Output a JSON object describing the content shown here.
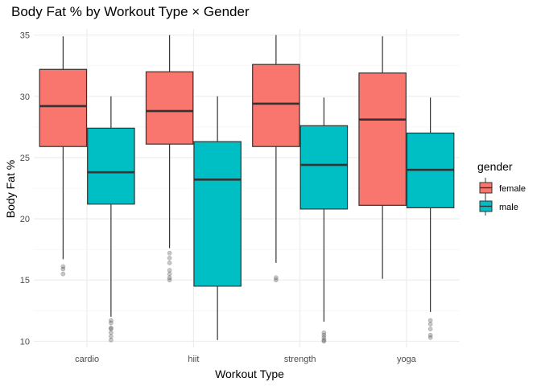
{
  "chart_data": {
    "type": "boxplot",
    "title": "Body Fat % by Workout Type × Gender",
    "xlabel": "Workout Type",
    "ylabel": "Body Fat %",
    "categories": [
      "cardio",
      "hiit",
      "strength",
      "yoga"
    ],
    "ylim": [
      9.5,
      35.5
    ],
    "yticks": [
      10,
      15,
      20,
      25,
      30,
      35
    ],
    "grid": true,
    "legend": {
      "title": "gender",
      "position": "right",
      "entries": [
        "female",
        "male"
      ]
    },
    "series": [
      {
        "name": "female",
        "color": "#F8766D",
        "boxes": [
          {
            "lower_whisker": 16.7,
            "q1": 25.9,
            "median": 29.2,
            "q3": 32.2,
            "upper_whisker": 34.9,
            "outliers": [
              16.1,
              15.9,
              15.5
            ]
          },
          {
            "lower_whisker": 17.6,
            "q1": 26.1,
            "median": 28.8,
            "q3": 32.0,
            "upper_whisker": 35.0,
            "outliers": [
              17.2,
              16.8,
              16.4,
              15.8,
              15.5,
              15.2,
              15.0
            ]
          },
          {
            "lower_whisker": 16.4,
            "q1": 25.9,
            "median": 29.4,
            "q3": 32.6,
            "upper_whisker": 35.0,
            "outliers": [
              15.2,
              15.0
            ]
          },
          {
            "lower_whisker": 15.1,
            "q1": 21.1,
            "median": 28.1,
            "q3": 31.9,
            "upper_whisker": 34.9,
            "outliers": []
          }
        ]
      },
      {
        "name": "male",
        "color": "#00BFC4",
        "boxes": [
          {
            "lower_whisker": 12.0,
            "q1": 21.2,
            "median": 23.8,
            "q3": 27.4,
            "upper_whisker": 30.0,
            "outliers": [
              11.7,
              11.5,
              11.1,
              11.0,
              10.7,
              10.4,
              10.1
            ]
          },
          {
            "lower_whisker": 10.1,
            "q1": 14.5,
            "median": 23.2,
            "q3": 26.3,
            "upper_whisker": 30.0,
            "outliers": []
          },
          {
            "lower_whisker": 11.6,
            "q1": 20.8,
            "median": 24.4,
            "q3": 27.6,
            "upper_whisker": 29.9,
            "outliers": [
              10.7,
              10.5,
              10.3,
              10.1,
              10.0
            ]
          },
          {
            "lower_whisker": 12.4,
            "q1": 20.9,
            "median": 24.0,
            "q3": 27.0,
            "upper_whisker": 29.9,
            "outliers": [
              11.7,
              11.4,
              11.0,
              10.5,
              10.3
            ]
          }
        ]
      }
    ]
  }
}
